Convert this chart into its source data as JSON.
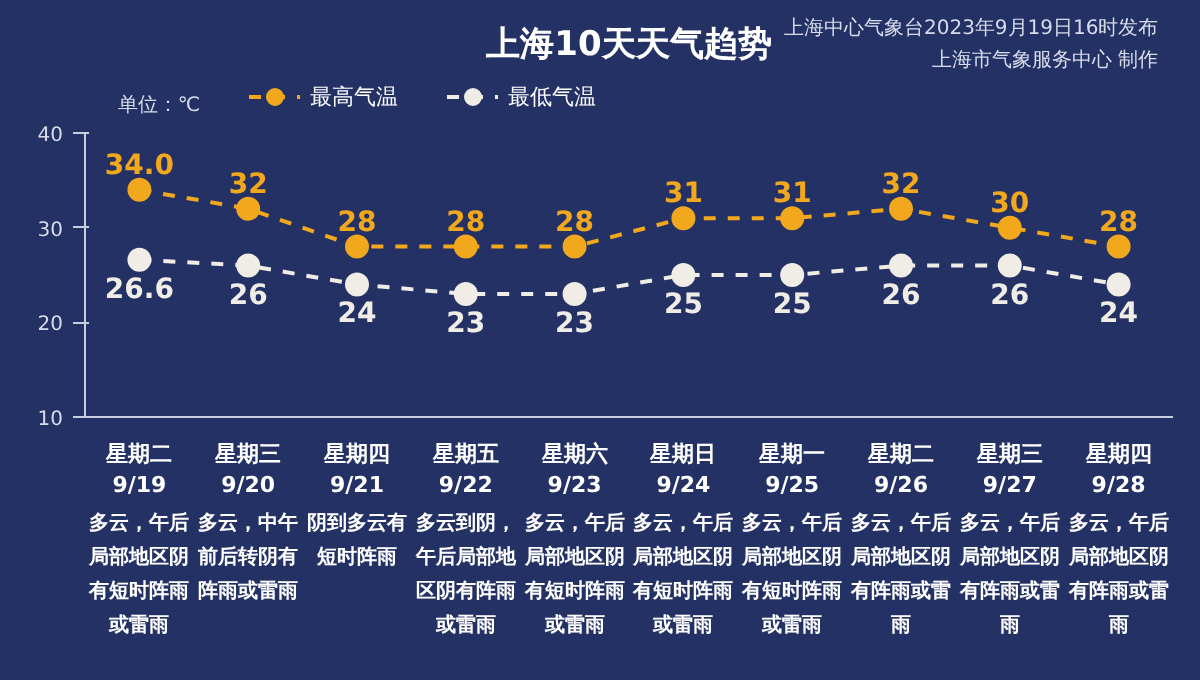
{
  "chart_data": {
    "type": "line",
    "title": "上海10天天气趋势",
    "ylabel": "单位：℃",
    "categories": [
      "星期二\n9/19",
      "星期三\n9/20",
      "星期四\n9/21",
      "星期五\n9/22",
      "星期六\n9/23",
      "星期日\n9/24",
      "星期一\n9/25",
      "星期二\n9/26",
      "星期三\n9/27",
      "星期四\n9/28"
    ],
    "series": [
      {
        "name": "最高气温",
        "color": "#f2a81d",
        "values": [
          34,
          32,
          28,
          28,
          28,
          31,
          31,
          32,
          30,
          28
        ],
        "value_labels": [
          "34.0",
          "32",
          "28",
          "28",
          "28",
          "31",
          "31",
          "32",
          "30",
          "28"
        ]
      },
      {
        "name": "最低气温",
        "color": "#f0ece6",
        "values": [
          26.6,
          26,
          24,
          23,
          23,
          25,
          25,
          26,
          26,
          24
        ],
        "value_labels": [
          "26.6",
          "26",
          "24",
          "23",
          "23",
          "25",
          "25",
          "26",
          "26",
          "24"
        ]
      }
    ],
    "ylim": [
      10,
      40
    ],
    "yticks": [
      10,
      20,
      30,
      40
    ],
    "grid": false,
    "legend": "top left",
    "marker": "circle",
    "line_style": "dashed",
    "annotations": [
      "上海中心气象台2023年9月19日16时发布",
      "上海市气象服务中心 制作",
      "多云，午后局部地区阴有短时阵雨或雷雨",
      "多云，中午前后转阴有阵雨或雷雨",
      "阴到多云有短时阵雨",
      "多云到阴，午后局部地区阴有阵雨或雷雨",
      "多云，午后局部地区阴有短时阵雨或雷雨",
      "多云，午后局部地区阴有短时阵雨或雷雨",
      "多云，午后局部地区阴有短时阵雨或雷雨",
      "多云，午后局部地区阴有阵雨或雷雨",
      "多云，午后局部地区阴有阵雨或雷雨",
      "多云，午后局部地区阴有阵雨或雷雨"
    ]
  }
}
